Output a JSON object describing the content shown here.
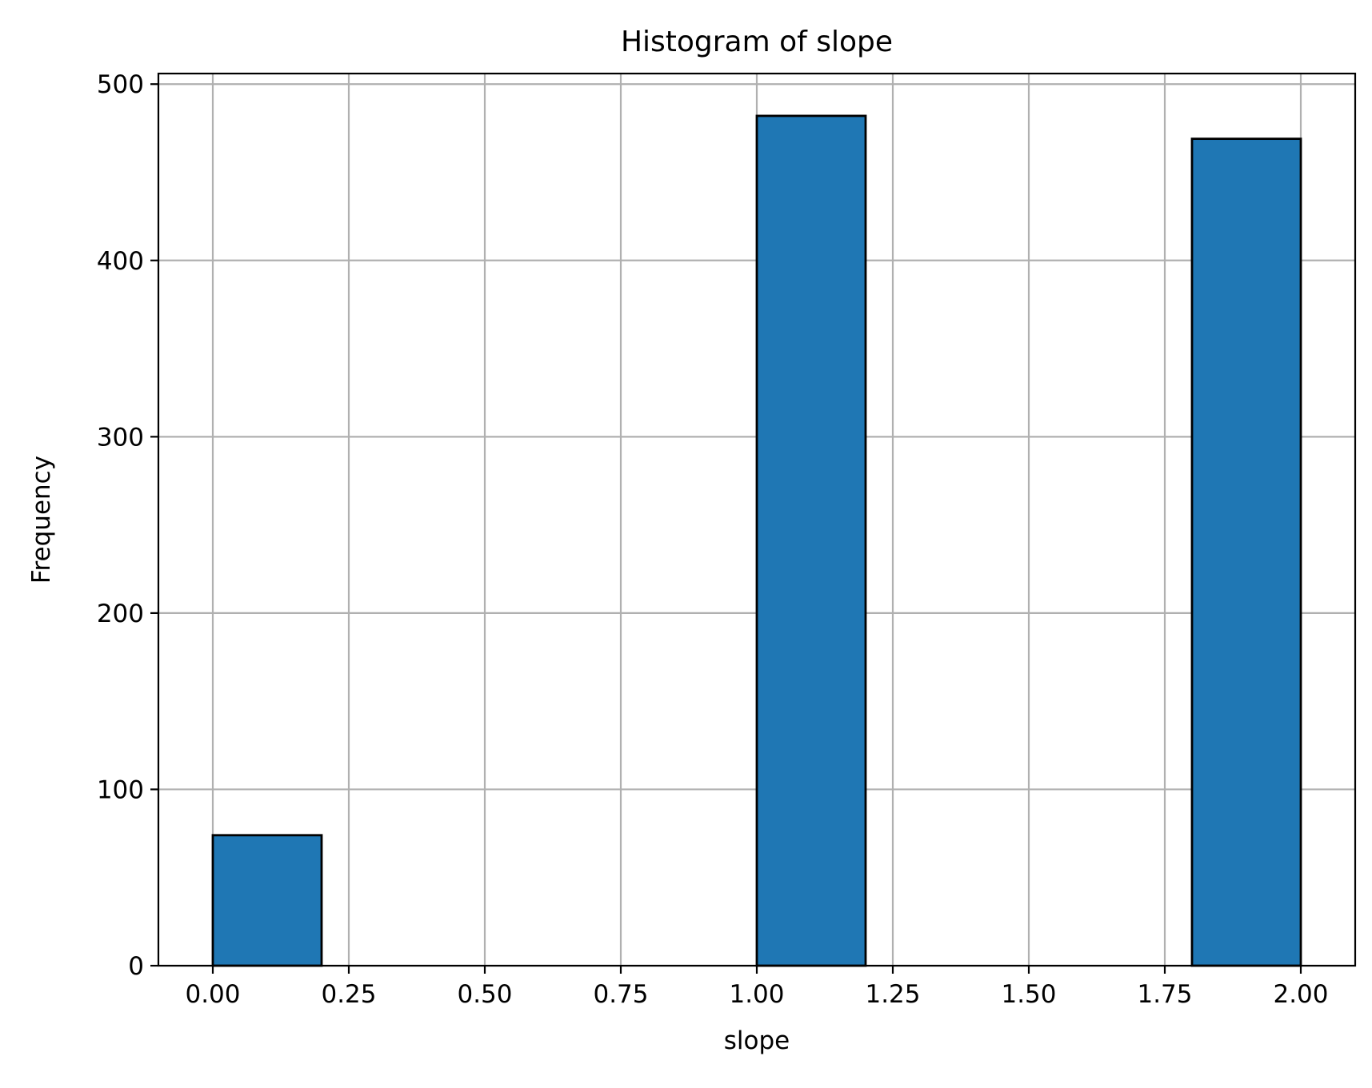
{
  "chart_data": {
    "type": "bar",
    "histogram": true,
    "title": "Histogram of slope",
    "xlabel": "slope",
    "ylabel": "Frequency",
    "bins": [
      {
        "start": 0.0,
        "end": 0.2,
        "count": 74
      },
      {
        "start": 0.2,
        "end": 0.4,
        "count": 0
      },
      {
        "start": 0.4,
        "end": 0.6,
        "count": 0
      },
      {
        "start": 0.6,
        "end": 0.8,
        "count": 0
      },
      {
        "start": 0.8,
        "end": 1.0,
        "count": 0
      },
      {
        "start": 1.0,
        "end": 1.2,
        "count": 482
      },
      {
        "start": 1.2,
        "end": 1.4,
        "count": 0
      },
      {
        "start": 1.4,
        "end": 1.6,
        "count": 0
      },
      {
        "start": 1.6,
        "end": 1.8,
        "count": 0
      },
      {
        "start": 1.8,
        "end": 2.0,
        "count": 469
      }
    ],
    "xlim": [
      -0.1,
      2.1
    ],
    "ylim": [
      0,
      506
    ],
    "xticks": [
      0.0,
      0.25,
      0.5,
      0.75,
      1.0,
      1.25,
      1.5,
      1.75,
      2.0
    ],
    "xtick_labels": [
      "0.00",
      "0.25",
      "0.50",
      "0.75",
      "1.00",
      "1.25",
      "1.50",
      "1.75",
      "2.00"
    ],
    "yticks": [
      0,
      100,
      200,
      300,
      400,
      500
    ],
    "ytick_labels": [
      "0",
      "100",
      "200",
      "300",
      "400",
      "500"
    ],
    "grid": true,
    "colors": {
      "bar_fill": "#1f77b4",
      "bar_edge": "#000000",
      "grid": "#b0b0b0"
    }
  }
}
